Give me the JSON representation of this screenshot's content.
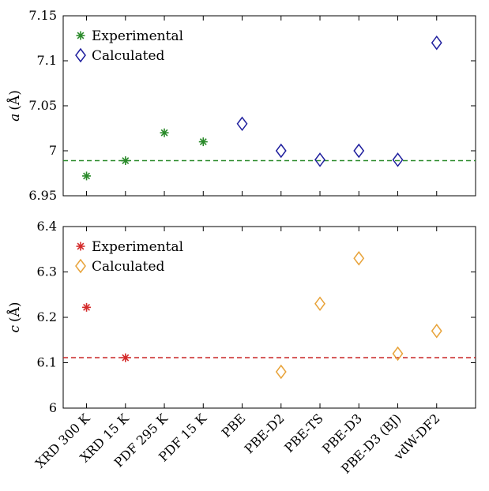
{
  "chart_data": [
    {
      "type": "scatter",
      "categories": [
        "XRD 300 K",
        "XRD 15 K",
        "PDF 295 K",
        "PDF 15 K",
        "PBE",
        "PBE-D2",
        "PBE-TS",
        "PBE-D3",
        "PBE-D3 (BJ)",
        "vdW-DF2"
      ],
      "ylabel_var": "a",
      "ylabel_unit": "(Å)",
      "ylim": [
        6.95,
        7.15
      ],
      "yticks": [
        "6.95",
        "7",
        "7.05",
        "7.1",
        "7.15"
      ],
      "ytick_values": [
        6.95,
        7.0,
        7.05,
        7.1,
        7.15
      ],
      "series": [
        {
          "name": "Experimental",
          "marker": "asterisk",
          "color": "#2a8a2a",
          "points": [
            {
              "x": "XRD 300 K",
              "y": 6.972
            },
            {
              "x": "XRD 15 K",
              "y": 6.989
            },
            {
              "x": "PDF 295 K",
              "y": 7.02
            },
            {
              "x": "PDF 15 K",
              "y": 7.01
            }
          ]
        },
        {
          "name": "Calculated",
          "marker": "diamond",
          "color": "#1f1f9e",
          "points": [
            {
              "x": "PBE",
              "y": 7.03
            },
            {
              "x": "PBE-D2",
              "y": 7.0
            },
            {
              "x": "PBE-TS",
              "y": 6.99
            },
            {
              "x": "PBE-D3",
              "y": 7.0
            },
            {
              "x": "PBE-D3 (BJ)",
              "y": 6.99
            },
            {
              "x": "vdW-DF2",
              "y": 7.12
            }
          ]
        }
      ],
      "reference_line": {
        "y": 6.989,
        "style": "dashed",
        "color": "#2a8a2a"
      },
      "legend": "top-left",
      "grid": false
    },
    {
      "type": "scatter",
      "categories": [
        "XRD 300 K",
        "XRD 15 K",
        "PDF 295 K",
        "PDF 15 K",
        "PBE",
        "PBE-D2",
        "PBE-TS",
        "PBE-D3",
        "PBE-D3 (BJ)",
        "vdW-DF2"
      ],
      "ylabel_var": "c",
      "ylabel_unit": "(Å)",
      "ylim": [
        6.0,
        6.4
      ],
      "yticks": [
        "6",
        "6.1",
        "6.2",
        "6.3",
        "6.4"
      ],
      "ytick_values": [
        6.0,
        6.1,
        6.2,
        6.3,
        6.4
      ],
      "series": [
        {
          "name": "Experimental",
          "marker": "asterisk",
          "color": "#d42a2a",
          "points": [
            {
              "x": "XRD 300 K",
              "y": 6.222
            },
            {
              "x": "XRD 15 K",
              "y": 6.111
            }
          ]
        },
        {
          "name": "Calculated",
          "marker": "diamond",
          "color": "#e8a33a",
          "points": [
            {
              "x": "PBE-D2",
              "y": 6.08
            },
            {
              "x": "PBE-TS",
              "y": 6.23
            },
            {
              "x": "PBE-D3",
              "y": 6.33
            },
            {
              "x": "PBE-D3 (BJ)",
              "y": 6.12
            },
            {
              "x": "vdW-DF2",
              "y": 6.17
            }
          ]
        }
      ],
      "reference_line": {
        "y": 6.111,
        "style": "dashed",
        "color": "#c81e1e"
      },
      "legend": "top-left",
      "grid": false
    }
  ]
}
